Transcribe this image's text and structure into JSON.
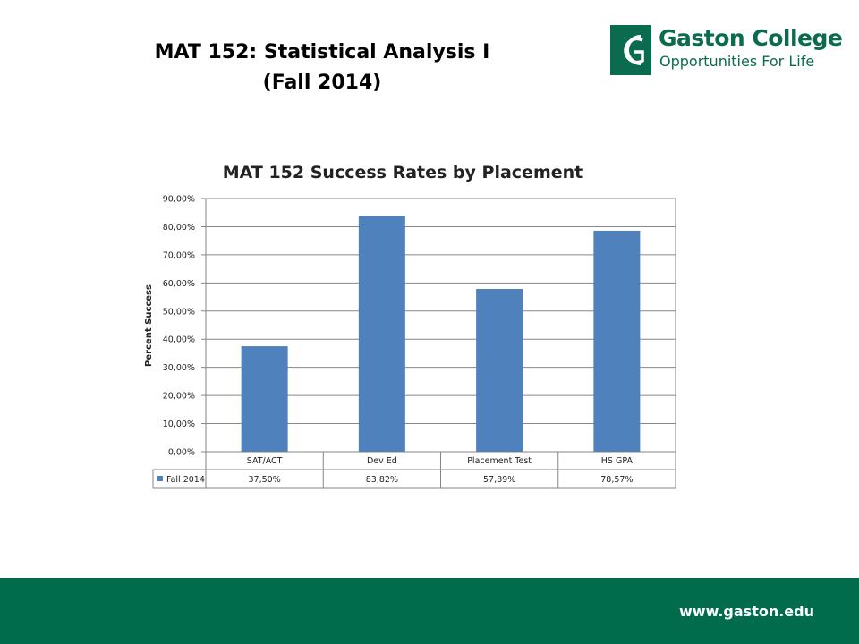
{
  "slide": {
    "title_line1": "MAT 152:  Statistical Analysis I",
    "title_line2": "(Fall 2014)",
    "footer_url": "www.gaston.edu"
  },
  "logo": {
    "name": "Gaston College",
    "tagline": "Opportunities For Life",
    "icon": "gaston-college-logo-icon",
    "color": "#0a6b4e"
  },
  "colors": {
    "footer": "#006c4c",
    "bar": "#4f81bd"
  },
  "chart_data": {
    "type": "bar",
    "title": "MAT 152 Success Rates by Placement",
    "ylabel": "Percent Success",
    "xlabel": "",
    "categories": [
      "SAT/ACT",
      "Dev Ed",
      "Placement Test",
      "HS GPA"
    ],
    "series": [
      {
        "name": "Fall 2014",
        "values": [
          37.5,
          83.82,
          57.89,
          78.57
        ],
        "labels": [
          "37,50%",
          "83,82%",
          "57,89%",
          "78,57%"
        ]
      }
    ],
    "ylim": [
      0,
      90
    ],
    "yticks": [
      0,
      10,
      20,
      30,
      40,
      50,
      60,
      70,
      80,
      90
    ],
    "ytick_labels": [
      "0,00%",
      "10,00%",
      "20,00%",
      "30,00%",
      "40,00%",
      "50,00%",
      "60,00%",
      "70,00%",
      "80,00%",
      "90,00%"
    ],
    "grid": true,
    "legend": "data-table"
  }
}
